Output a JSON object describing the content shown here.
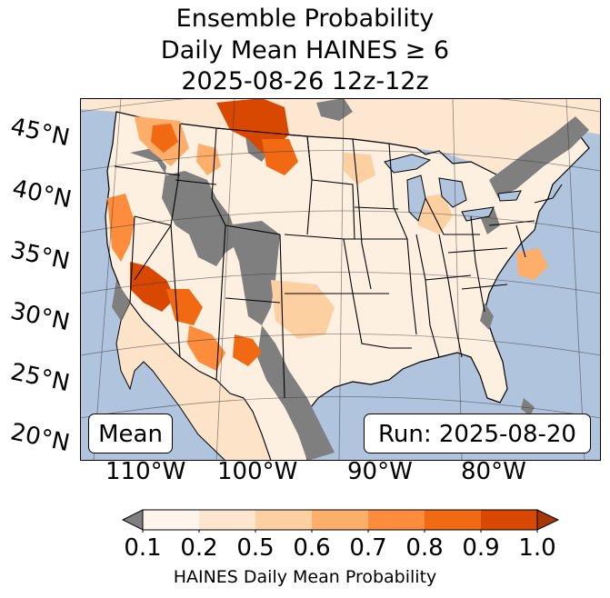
{
  "title": {
    "line1": "Ensemble Probability",
    "line2": "Daily Mean HAINES ≥ 6",
    "line3": "2025-08-26 12z-12z"
  },
  "map": {
    "type": "probability map of the contiguous United States",
    "latitude_labels": [
      "45°N",
      "40°N",
      "35°N",
      "30°N",
      "25°N",
      "20°N"
    ],
    "longitude_labels": [
      "110°W",
      "100°W",
      "90°W",
      "80°W"
    ],
    "mean_label": "Mean",
    "run_label": "Run: 2025-08-20",
    "ocean_color": "#b0c4de",
    "missing_color": "#7f7f7f",
    "land_color": "#ffffff"
  },
  "colorbar": {
    "ticks": [
      "0.1",
      "0.2",
      "0.5",
      "0.6",
      "0.7",
      "0.8",
      "0.9",
      "1.0"
    ],
    "colors": [
      "#fff5eb",
      "#fee6ce",
      "#fdd0a2",
      "#fdae6b",
      "#fd8d3c",
      "#f16913",
      "#d94801",
      "#a63603"
    ],
    "under_color": "#7f7f7f",
    "label": "HAINES Daily Mean Probability"
  }
}
